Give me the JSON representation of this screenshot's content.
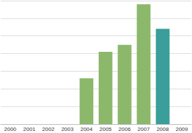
{
  "chart_data": {
    "type": "bar",
    "categories": [
      "2000",
      "2001",
      "2002",
      "2003",
      "2004",
      "2005",
      "2006",
      "2007",
      "2008",
      "2009"
    ],
    "values": [
      null,
      null,
      null,
      null,
      2.6,
      4.1,
      4.5,
      6.8,
      5.4,
      null
    ],
    "colors": [
      "#8cb86b",
      "#8cb86b",
      "#8cb86b",
      "#8cb86b",
      "#8cb86b",
      "#8cb86b",
      "#8cb86b",
      "#8cb86b",
      "#3a9e9a",
      "#8cb86b"
    ],
    "ylim": [
      0,
      7
    ],
    "yticks": [
      0,
      1,
      2,
      3,
      4,
      5,
      6,
      7
    ],
    "grid": true,
    "tick_labels": "x"
  }
}
